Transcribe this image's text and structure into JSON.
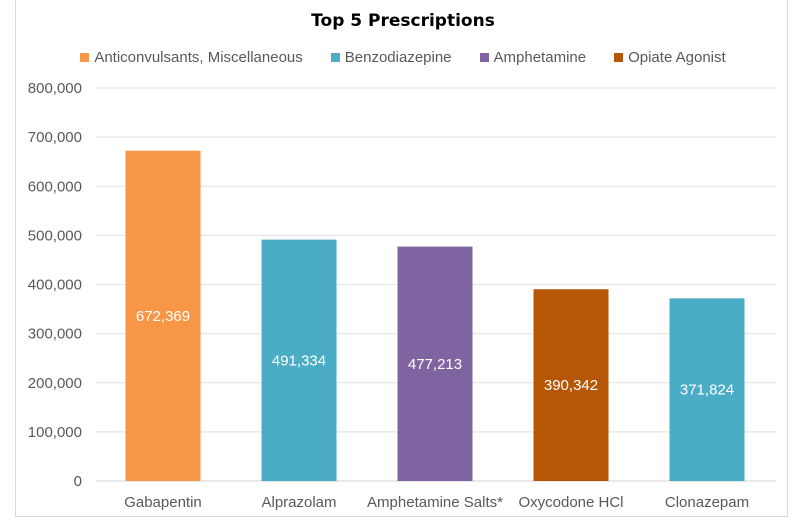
{
  "chart_data": {
    "type": "bar",
    "title": "Top 5 Prescriptions",
    "xlabel": "",
    "ylabel": "",
    "ylim": [
      0,
      800000
    ],
    "yticks": [
      0,
      100000,
      200000,
      300000,
      400000,
      500000,
      600000,
      700000,
      800000
    ],
    "ytick_labels": [
      "0",
      "100,000",
      "200,000",
      "300,000",
      "400,000",
      "500,000",
      "600,000",
      "700,000",
      "800,000"
    ],
    "grid": true,
    "legend_position": "top",
    "legend": [
      {
        "name": "Anticonvulsants, Miscellaneous",
        "color": "#F79646"
      },
      {
        "name": "Benzodiazepine",
        "color": "#4BACC6"
      },
      {
        "name": "Amphetamine",
        "color": "#8064A2"
      },
      {
        "name": "Opiate Agonist",
        "color": "#B65708"
      }
    ],
    "categories": [
      "Gabapentin",
      "Alprazolam",
      "Amphetamine Salts*",
      "Oxycodone HCl",
      "Clonazepam"
    ],
    "values": [
      672369,
      491334,
      477213,
      390342,
      371824
    ],
    "data_labels": [
      "672,369",
      "491,334",
      "477,213",
      "390,342",
      "371,824"
    ],
    "bar_groups": [
      "Anticonvulsants, Miscellaneous",
      "Benzodiazepine",
      "Amphetamine",
      "Opiate Agonist",
      "Benzodiazepine"
    ],
    "bar_colors": [
      "#F79646",
      "#4BACC6",
      "#8064A2",
      "#B65708",
      "#4BACC6"
    ]
  }
}
